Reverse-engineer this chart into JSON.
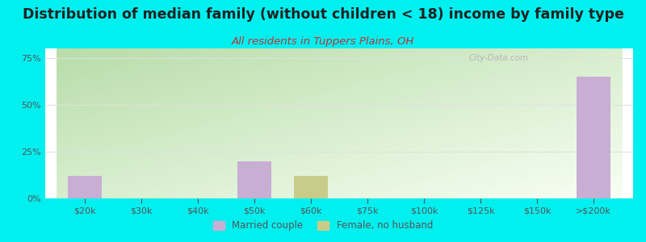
{
  "title": "Distribution of median family (without children < 18) income by family type",
  "subtitle": "All residents in Tuppers Plains, OH",
  "categories": [
    "$20k",
    "$30k",
    "$40k",
    "$50k",
    "$60k",
    "$75k",
    "$100k",
    "$125k",
    "$150k",
    ">$200k"
  ],
  "married_couple": [
    12,
    0,
    0,
    20,
    0,
    0,
    0,
    0,
    0,
    65
  ],
  "female_no_husband": [
    0,
    0,
    0,
    0,
    12,
    0,
    0,
    0,
    0,
    0
  ],
  "bar_color_married": "#c9aed4",
  "bar_color_female": "#c8cc88",
  "bg_color": "#00f0f0",
  "plot_bg_top_left": "#b8ddaa",
  "plot_bg_bottom_right": "#f8fff4",
  "title_color": "#222222",
  "subtitle_color": "#bb3333",
  "axis_label_color": "#555555",
  "grid_color": "#e0e0e0",
  "ylim": [
    0,
    80
  ],
  "yticks": [
    0,
    25,
    50,
    75
  ],
  "ytick_labels": [
    "0%",
    "25%",
    "50%",
    "75%"
  ],
  "bar_width": 0.6,
  "legend_married": "Married couple",
  "legend_female": "Female, no husband",
  "title_fontsize": 12.5,
  "subtitle_fontsize": 9.5,
  "tick_fontsize": 8,
  "watermark_text": "City-Data.com",
  "watermark_color": "#aaaaaa"
}
